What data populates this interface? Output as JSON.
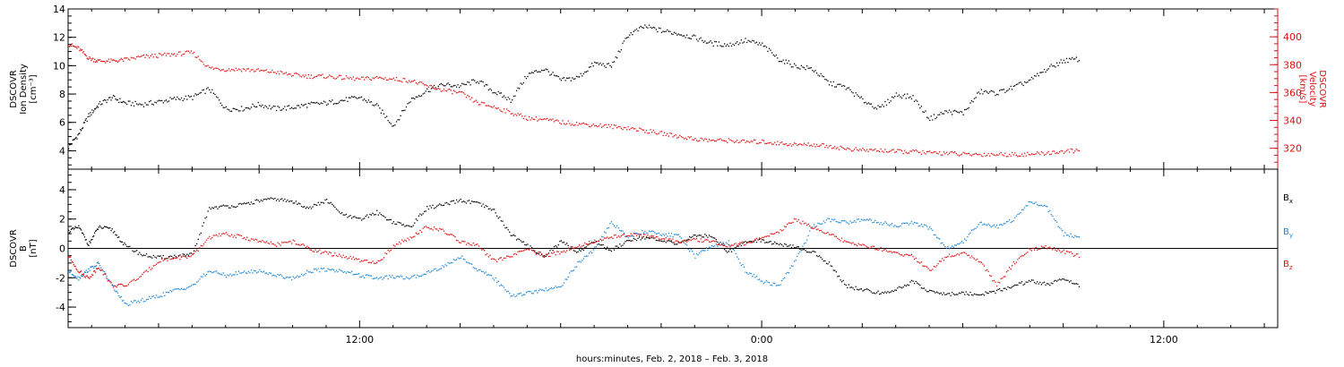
{
  "colors": {
    "black": "#000000",
    "red": "#e01010",
    "blue": "#1a86d6"
  },
  "chart_data": {
    "xlabel": "hours:minutes, Feb.  2, 2018 – Feb.  3, 2018",
    "x_unit": "hours since 2018-02-02 00:00 UT",
    "xlim": [
      3.3,
      39.4
    ],
    "x_ticks": [
      {
        "x": 12,
        "label": "12:00"
      },
      {
        "x": 24,
        "label": "0:00"
      },
      {
        "x": 36,
        "label": "12:00"
      }
    ],
    "panels": [
      {
        "id": "plasma",
        "type": "scatter",
        "left_axis": {
          "title_lines": [
            "DSCOVR",
            "Ion  Density",
            "[cm⁻³]"
          ],
          "ylim": [
            2.7,
            14
          ],
          "ticks": [
            4,
            6,
            8,
            10,
            12,
            14
          ],
          "color": "#000000"
        },
        "right_axis": {
          "title_lines": [
            "DSCOVR",
            "Velocity",
            "[km/s]"
          ],
          "ylim": [
            305,
            420
          ],
          "ticks": [
            320,
            340,
            360,
            380,
            400
          ],
          "color": "#e01010"
        },
        "series": [
          {
            "name": "Ion Density",
            "axis": "left",
            "color": "#000000",
            "x": [
              3.3,
              3.6,
              3.9,
              4.2,
              4.6,
              5.0,
              5.5,
              6.0,
              6.5,
              7.0,
              7.5,
              8.0,
              8.5,
              9.0,
              9.5,
              10.0,
              10.5,
              11.0,
              11.5,
              12.0,
              12.5,
              13.0,
              13.5,
              14.0,
              14.5,
              15.0,
              15.5,
              16.0,
              16.5,
              17.0,
              17.5,
              18.0,
              18.5,
              19.0,
              19.5,
              20.0,
              20.5,
              21.0,
              21.5,
              22.0,
              22.5,
              23.0,
              23.5,
              24.0,
              24.5,
              25.0,
              25.5,
              26.0,
              26.5,
              27.0,
              27.5,
              28.0,
              28.5,
              29.0,
              29.5,
              30.0,
              30.5,
              31.0,
              31.5,
              32.0,
              32.5,
              33.0,
              33.5
            ],
            "y": [
              4.3,
              5.2,
              6.5,
              7.3,
              7.8,
              7.4,
              7.3,
              7.5,
              7.7,
              7.8,
              8.4,
              7.0,
              7.0,
              7.3,
              7.0,
              7.1,
              7.3,
              7.4,
              7.6,
              7.8,
              7.2,
              5.8,
              7.6,
              8.3,
              8.7,
              8.6,
              9.0,
              8.2,
              7.6,
              9.4,
              9.8,
              9.0,
              9.2,
              10.2,
              10.0,
              12.2,
              12.8,
              12.5,
              12.3,
              12.0,
              11.6,
              11.5,
              11.8,
              11.5,
              10.5,
              10.0,
              9.8,
              8.8,
              8.5,
              7.6,
              7.0,
              8.0,
              7.8,
              6.3,
              6.8,
              6.7,
              8.2,
              8.1,
              8.5,
              9.0,
              9.8,
              10.4,
              10.5
            ]
          },
          {
            "name": "Velocity",
            "axis": "right",
            "color": "#e01010",
            "x": [
              3.3,
              3.6,
              3.9,
              4.2,
              4.6,
              5.0,
              5.5,
              6.0,
              6.5,
              7.0,
              7.5,
              8.0,
              8.5,
              9.0,
              9.5,
              10.0,
              10.5,
              11.0,
              11.5,
              12.0,
              12.5,
              13.0,
              13.5,
              14.0,
              14.5,
              15.0,
              15.5,
              16.0,
              16.5,
              17.0,
              17.5,
              18.0,
              18.5,
              19.0,
              19.5,
              20.0,
              20.5,
              21.0,
              21.5,
              22.0,
              22.5,
              23.0,
              23.5,
              24.0,
              24.5,
              25.0,
              25.5,
              26.0,
              26.5,
              27.0,
              27.5,
              28.0,
              28.5,
              29.0,
              29.5,
              30.0,
              30.5,
              31.0,
              31.5,
              32.0,
              32.5,
              33.0,
              33.5
            ],
            "y": [
              395,
              392,
              385,
              383,
              383,
              384,
              386,
              387,
              388,
              389,
              378,
              377,
              377,
              376,
              375,
              373,
              372,
              372,
              371,
              370,
              371,
              370,
              369,
              365,
              362,
              360,
              353,
              350,
              346,
              342,
              341,
              339,
              338,
              337,
              336,
              335,
              333,
              331,
              329,
              327,
              326,
              326,
              325,
              325,
              324,
              323,
              323,
              322,
              320,
              319,
              319,
              318,
              318,
              317,
              317,
              316,
              316,
              316,
              316,
              316,
              317,
              318,
              319
            ]
          }
        ]
      },
      {
        "id": "magnetic",
        "type": "scatter",
        "left_axis": {
          "title_lines": [
            "DSCOVR",
            "B",
            "[nT]"
          ],
          "ylim": [
            -5.4,
            5.4
          ],
          "ticks": [
            -4,
            -2,
            0,
            2,
            4
          ],
          "color": "#000000"
        },
        "zero_line": true,
        "series": [
          {
            "name": "Bx",
            "legend_base": "B",
            "legend_sub": "x",
            "color": "#000000",
            "x": [
              3.3,
              3.6,
              3.9,
              4.2,
              4.6,
              5.0,
              5.5,
              6.0,
              6.5,
              7.0,
              7.5,
              8.0,
              8.5,
              9.0,
              9.5,
              10.0,
              10.5,
              11.0,
              11.5,
              12.0,
              12.5,
              13.0,
              13.5,
              14.0,
              14.5,
              15.0,
              15.5,
              16.0,
              16.5,
              17.0,
              17.5,
              18.0,
              18.5,
              19.0,
              19.5,
              20.0,
              20.5,
              21.0,
              21.5,
              22.0,
              22.5,
              23.0,
              23.5,
              24.0,
              24.5,
              25.0,
              25.5,
              26.0,
              26.5,
              27.0,
              27.5,
              28.0,
              28.5,
              29.0,
              29.5,
              30.0,
              30.5,
              31.0,
              31.5,
              32.0,
              32.5,
              33.0,
              33.5
            ],
            "y": [
              1.2,
              1.5,
              0.3,
              1.5,
              1.3,
              0.2,
              -0.4,
              -0.6,
              -0.5,
              -0.4,
              2.8,
              2.9,
              3.0,
              3.3,
              3.4,
              3.2,
              2.8,
              3.3,
              2.3,
              2.0,
              2.5,
              1.8,
              1.5,
              2.8,
              3.0,
              3.3,
              3.1,
              2.6,
              1.0,
              0.2,
              -0.5,
              0.5,
              -0.2,
              0.5,
              -0.1,
              0.6,
              0.8,
              0.5,
              0.4,
              0.9,
              0.9,
              -0.2,
              0.5,
              0.6,
              0.3,
              0.1,
              -0.2,
              -1.0,
              -2.5,
              -2.8,
              -3.0,
              -2.8,
              -2.2,
              -2.9,
              -3.1,
              -3.0,
              -3.1,
              -2.9,
              -2.5,
              -2.2,
              -2.4,
              -2.1,
              -2.5
            ]
          },
          {
            "name": "By",
            "legend_base": "B",
            "legend_sub": "y",
            "color": "#1a86d6",
            "x": [
              3.3,
              3.6,
              3.9,
              4.2,
              4.6,
              5.0,
              5.5,
              6.0,
              6.5,
              7.0,
              7.5,
              8.0,
              8.5,
              9.0,
              9.5,
              10.0,
              10.5,
              11.0,
              11.5,
              12.0,
              12.5,
              13.0,
              13.5,
              14.0,
              14.5,
              15.0,
              15.5,
              16.0,
              16.5,
              17.0,
              17.5,
              18.0,
              18.5,
              19.0,
              19.5,
              20.0,
              20.5,
              21.0,
              21.5,
              22.0,
              22.5,
              23.0,
              23.5,
              24.0,
              24.5,
              25.0,
              25.5,
              26.0,
              26.5,
              27.0,
              27.5,
              28.0,
              28.5,
              29.0,
              29.5,
              30.0,
              30.5,
              31.0,
              31.5,
              32.0,
              32.5,
              33.0,
              33.5
            ],
            "y": [
              -1.5,
              -2.0,
              -1.4,
              -1.0,
              -2.5,
              -3.8,
              -3.5,
              -3.2,
              -2.8,
              -2.5,
              -1.5,
              -1.8,
              -1.6,
              -1.5,
              -1.8,
              -2.0,
              -1.5,
              -1.4,
              -1.5,
              -1.8,
              -2.0,
              -1.9,
              -2.0,
              -1.6,
              -1.2,
              -0.5,
              -1.4,
              -2.0,
              -3.2,
              -3.0,
              -2.8,
              -2.5,
              -1.0,
              0.0,
              1.8,
              0.8,
              1.2,
              1.0,
              0.9,
              -0.5,
              0.2,
              0.5,
              -1.5,
              -2.2,
              -2.5,
              -0.8,
              1.5,
              2.0,
              1.8,
              2.0,
              1.8,
              1.6,
              1.8,
              1.4,
              0.0,
              0.5,
              1.8,
              1.5,
              2.0,
              3.2,
              2.8,
              1.0,
              0.8
            ]
          },
          {
            "name": "Bz",
            "legend_base": "B",
            "legend_sub": "z",
            "color": "#e01010",
            "x": [
              3.3,
              3.6,
              3.9,
              4.2,
              4.6,
              5.0,
              5.5,
              6.0,
              6.5,
              7.0,
              7.5,
              8.0,
              8.5,
              9.0,
              9.5,
              10.0,
              10.5,
              11.0,
              11.5,
              12.0,
              12.5,
              13.0,
              13.5,
              14.0,
              14.5,
              15.0,
              15.5,
              16.0,
              16.5,
              17.0,
              17.5,
              18.0,
              18.5,
              19.0,
              19.5,
              20.0,
              20.5,
              21.0,
              21.5,
              22.0,
              22.5,
              23.0,
              23.5,
              24.0,
              24.5,
              25.0,
              25.5,
              26.0,
              26.5,
              27.0,
              27.5,
              28.0,
              28.5,
              29.0,
              29.5,
              30.0,
              30.5,
              31.0,
              31.5,
              32.0,
              32.5,
              33.0,
              33.5
            ],
            "y": [
              -0.5,
              -1.5,
              -2.0,
              -1.2,
              -2.5,
              -2.5,
              -1.8,
              -0.8,
              -0.6,
              -0.5,
              0.8,
              1.0,
              0.8,
              0.5,
              0.3,
              0.5,
              0.0,
              -0.3,
              -0.5,
              -0.8,
              -1.0,
              0.2,
              0.8,
              1.5,
              1.2,
              0.5,
              0.2,
              -0.8,
              -0.5,
              0.0,
              -0.5,
              -0.2,
              0.2,
              0.5,
              0.8,
              1.0,
              0.9,
              0.7,
              0.5,
              0.6,
              0.5,
              0.2,
              0.4,
              0.8,
              1.2,
              2.0,
              1.5,
              1.0,
              0.5,
              0.2,
              0.0,
              -0.3,
              -0.5,
              -1.5,
              -0.5,
              -0.3,
              -0.8,
              -2.5,
              -1.0,
              0.0,
              0.1,
              -0.2,
              -0.5
            ]
          }
        ]
      }
    ]
  }
}
